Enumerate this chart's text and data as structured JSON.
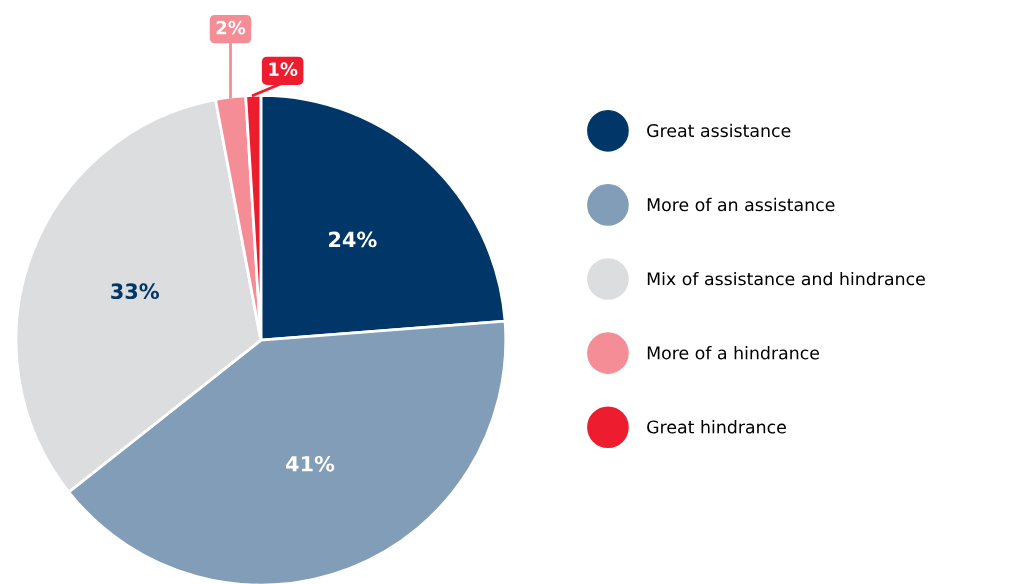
{
  "chart_data": {
    "type": "pie",
    "categories": [
      "Great assistance",
      "More of an assistance",
      "Mix of assistance and hindrance",
      "More of a hindrance",
      "Great hindrance"
    ],
    "values": [
      24,
      41,
      33,
      2,
      1
    ],
    "colors": [
      "#003768",
      "#829db8",
      "#dcdddf",
      "#f48d96",
      "#ed1c2e"
    ],
    "value_labels": [
      "24%",
      "41%",
      "33%",
      "2%",
      "1%"
    ],
    "legend": "right"
  }
}
